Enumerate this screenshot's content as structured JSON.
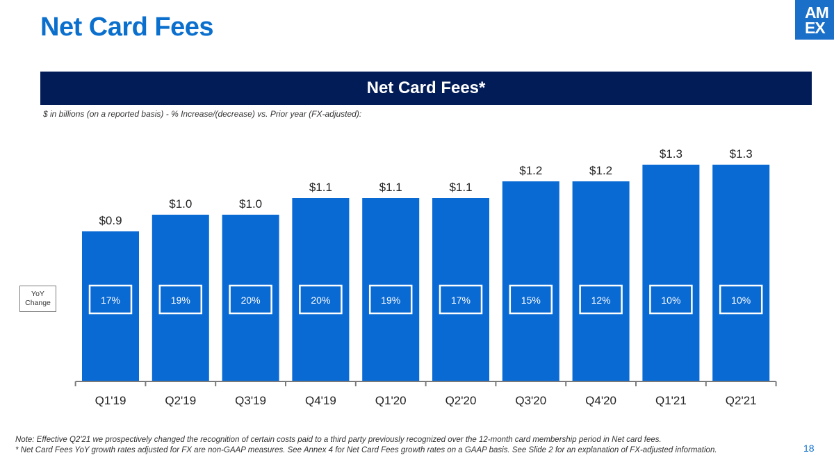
{
  "slide": {
    "title": "Net Card Fees",
    "banner": "Net Card Fees*",
    "subtitle": "$ in billions (on a reported basis) - % Increase/(decrease) vs. Prior year (FX-adjusted):",
    "yoy_label_line1": "YoY",
    "yoy_label_line2": "Change",
    "footnote_1": "Note: Effective Q2'21 we prospectively changed the recognition of certain costs paid to a third party previously recognized over the 12-month card membership period in Net card fees.",
    "footnote_2": "* Net Card Fees YoY growth rates adjusted for FX are non-GAAP measures. See Annex 4 for Net Card Fees growth rates on a GAAP basis. See Slide 2 for an explanation of FX-adjusted information.",
    "page_number": "18",
    "logo_line1": "AM",
    "logo_line2": "EX"
  },
  "colors": {
    "title": "#0b6fcd",
    "banner_bg": "#011c56",
    "bar": "#0a6ad3",
    "logo_bg": "#1a6fc9"
  },
  "chart_data": {
    "type": "bar",
    "title": "Net Card Fees*",
    "ylabel": "$ in billions",
    "categories": [
      "Q1'19",
      "Q2'19",
      "Q3'19",
      "Q4'19",
      "Q1'20",
      "Q2'20",
      "Q3'20",
      "Q4'20",
      "Q1'21",
      "Q2'21"
    ],
    "values": [
      0.9,
      1.0,
      1.0,
      1.1,
      1.1,
      1.1,
      1.2,
      1.2,
      1.3,
      1.3
    ],
    "value_labels": [
      "$0.9",
      "$1.0",
      "$1.0",
      "$1.1",
      "$1.1",
      "$1.1",
      "$1.2",
      "$1.2",
      "$1.3",
      "$1.3"
    ],
    "yoy_change": [
      "17%",
      "19%",
      "20%",
      "20%",
      "19%",
      "17%",
      "15%",
      "12%",
      "10%",
      "10%"
    ],
    "ylim": [
      0,
      1.3
    ]
  }
}
